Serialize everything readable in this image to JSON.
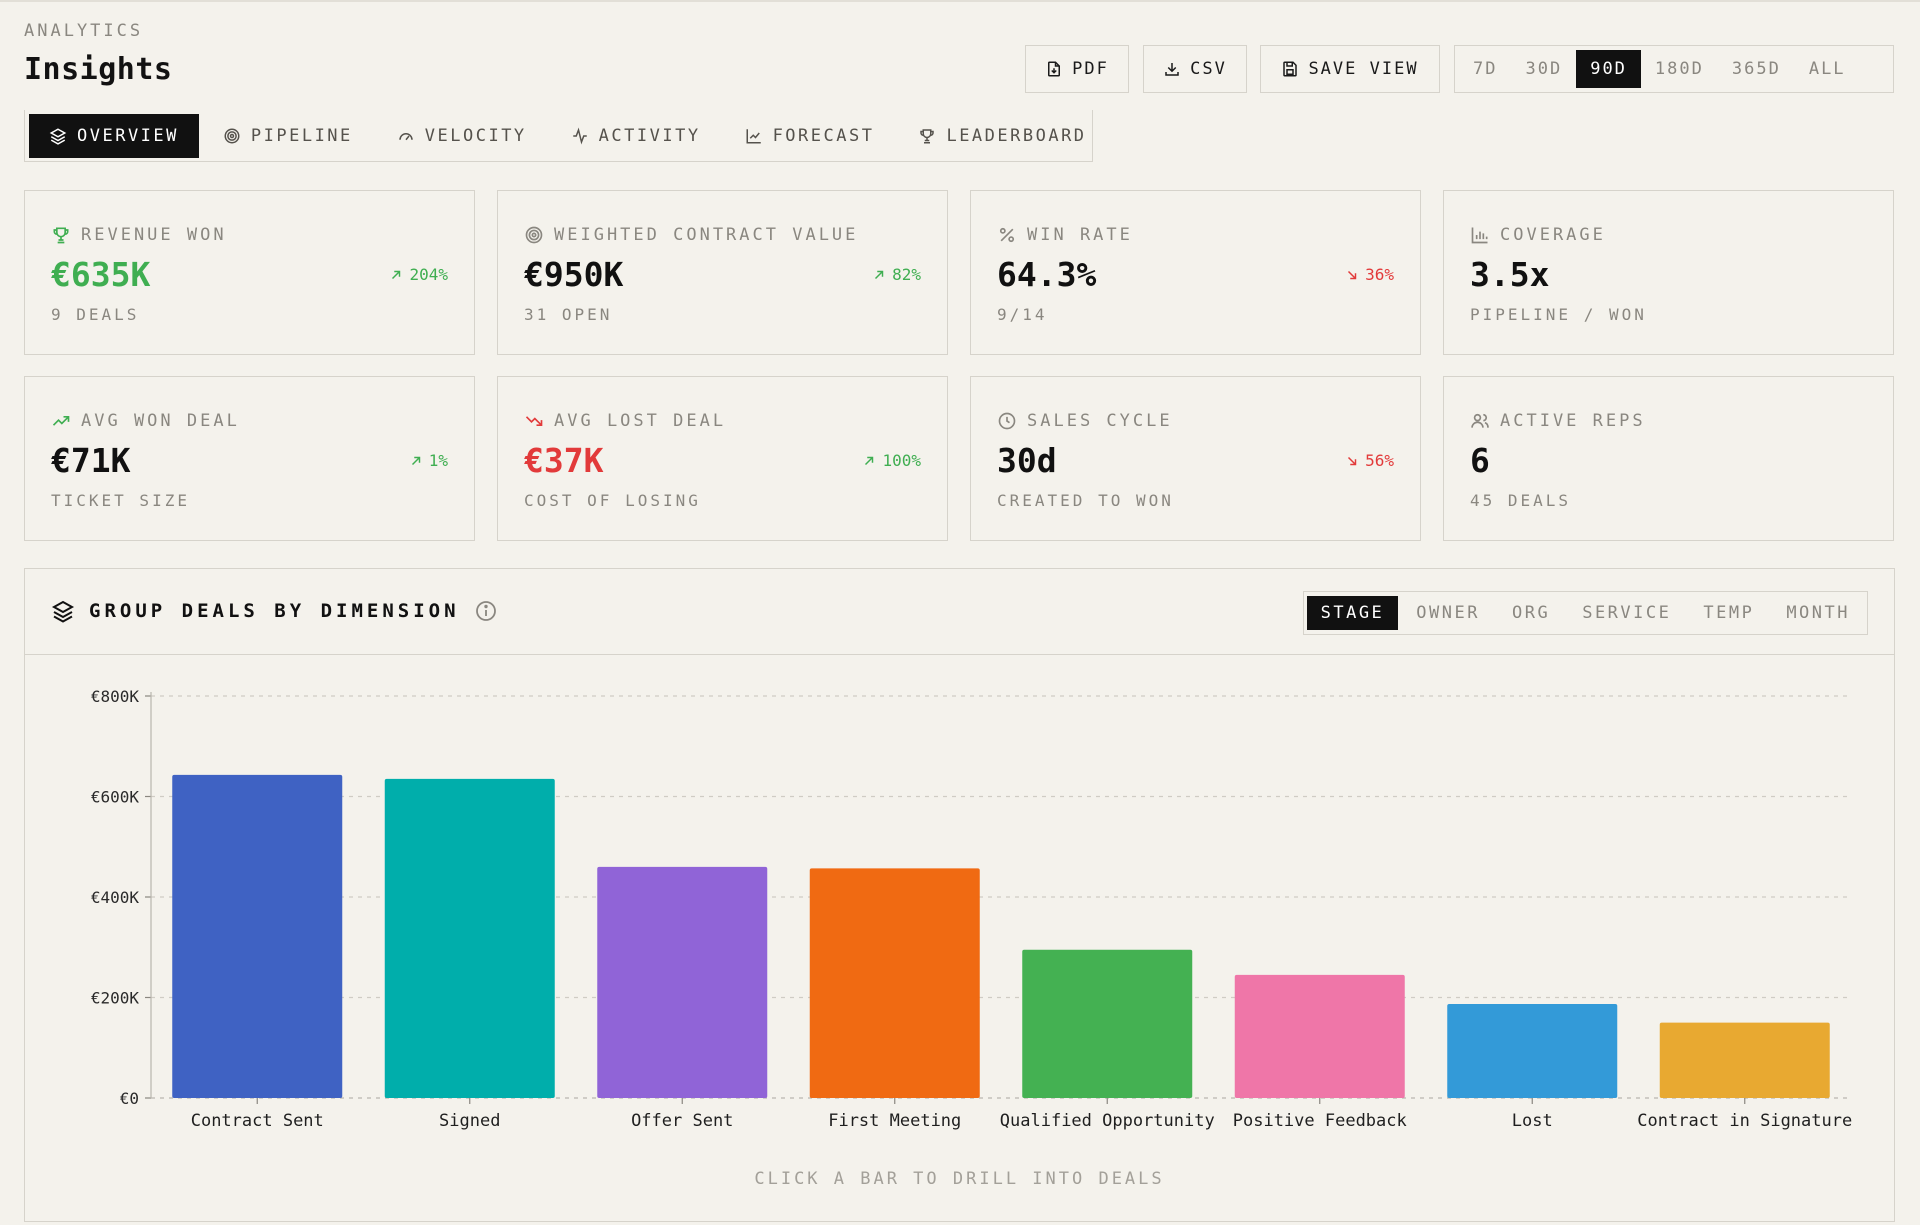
{
  "header": {
    "eyebrow": "ANALYTICS",
    "title": "Insights",
    "pdf_label": "PDF",
    "csv_label": "CSV",
    "save_view_label": "SAVE VIEW",
    "ranges": [
      "7D",
      "30D",
      "90D",
      "180D",
      "365D",
      "ALL"
    ],
    "active_range": "90D"
  },
  "tabs": [
    {
      "label": "OVERVIEW",
      "icon": "layers-icon",
      "active": true
    },
    {
      "label": "PIPELINE",
      "icon": "target-icon",
      "active": false
    },
    {
      "label": "VELOCITY",
      "icon": "gauge-icon",
      "active": false
    },
    {
      "label": "ACTIVITY",
      "icon": "pulse-icon",
      "active": false
    },
    {
      "label": "FORECAST",
      "icon": "line-chart-icon",
      "active": false
    },
    {
      "label": "LEADERBOARD",
      "icon": "trophy-icon",
      "active": false
    }
  ],
  "kpis": [
    {
      "label": "REVENUE WON",
      "icon": "trophy-icon",
      "value": "€635K",
      "value_tone": "green",
      "sub": "9 DEALS",
      "delta": "204%",
      "delta_dir": "up",
      "icon_color": "#3fae51"
    },
    {
      "label": "WEIGHTED CONTRACT VALUE",
      "icon": "target-icon",
      "value": "€950K",
      "value_tone": "default",
      "sub": "31 OPEN",
      "delta": "82%",
      "delta_dir": "up",
      "icon_color": "#8a8780"
    },
    {
      "label": "WIN RATE",
      "icon": "percent-icon",
      "value": "64.3%",
      "value_tone": "default",
      "sub": "9/14",
      "delta": "36%",
      "delta_dir": "down",
      "icon_color": "#8a8780"
    },
    {
      "label": "COVERAGE",
      "icon": "bar-chart-icon",
      "value": "3.5x",
      "value_tone": "default",
      "sub": "PIPELINE / WON",
      "delta": "",
      "delta_dir": "",
      "icon_color": "#8a8780"
    },
    {
      "label": "AVG WON DEAL",
      "icon": "trending-up-icon",
      "value": "€71K",
      "value_tone": "default",
      "sub": "TICKET SIZE",
      "delta": "1%",
      "delta_dir": "up",
      "icon_color": "#3fae51"
    },
    {
      "label": "AVG LOST DEAL",
      "icon": "trending-down-icon",
      "value": "€37K",
      "value_tone": "red",
      "sub": "COST OF LOSING",
      "delta": "100%",
      "delta_dir": "up",
      "icon_color": "#e23a3a"
    },
    {
      "label": "SALES CYCLE",
      "icon": "clock-icon",
      "value": "30d",
      "value_tone": "default",
      "sub": "CREATED TO WON",
      "delta": "56%",
      "delta_dir": "down",
      "icon_color": "#8a8780"
    },
    {
      "label": "ACTIVE REPS",
      "icon": "users-icon",
      "value": "6",
      "value_tone": "default",
      "sub": "45 DEALS",
      "delta": "",
      "delta_dir": "",
      "icon_color": "#8a8780"
    }
  ],
  "panel": {
    "title": "GROUP DEALS BY DIMENSION",
    "dimensions": [
      "STAGE",
      "OWNER",
      "ORG",
      "SERVICE",
      "TEMP",
      "MONTH"
    ],
    "active_dimension": "STAGE",
    "hint": "CLICK A BAR TO DRILL INTO DEALS"
  },
  "chart_data": {
    "type": "bar",
    "title": "",
    "xlabel": "",
    "ylabel": "",
    "categories": [
      "Contract Sent",
      "Signed",
      "Offer Sent",
      "First Meeting",
      "Qualified Opportunity",
      "Positive Feedback",
      "Lost",
      "Contract in Signature"
    ],
    "values": [
      643000,
      635000,
      460000,
      457000,
      295000,
      245000,
      187000,
      150000
    ],
    "colors": [
      "#3f62c3",
      "#00aeab",
      "#9064d7",
      "#f06a12",
      "#44b152",
      "#ef76a8",
      "#339ad8",
      "#e8a931"
    ],
    "ylim": [
      0,
      800000
    ],
    "yticks": [
      0,
      200000,
      400000,
      600000,
      800000
    ],
    "ytick_labels": [
      "€0",
      "€200K",
      "€400K",
      "€600K",
      "€800K"
    ],
    "grid": true,
    "legend": "none"
  }
}
